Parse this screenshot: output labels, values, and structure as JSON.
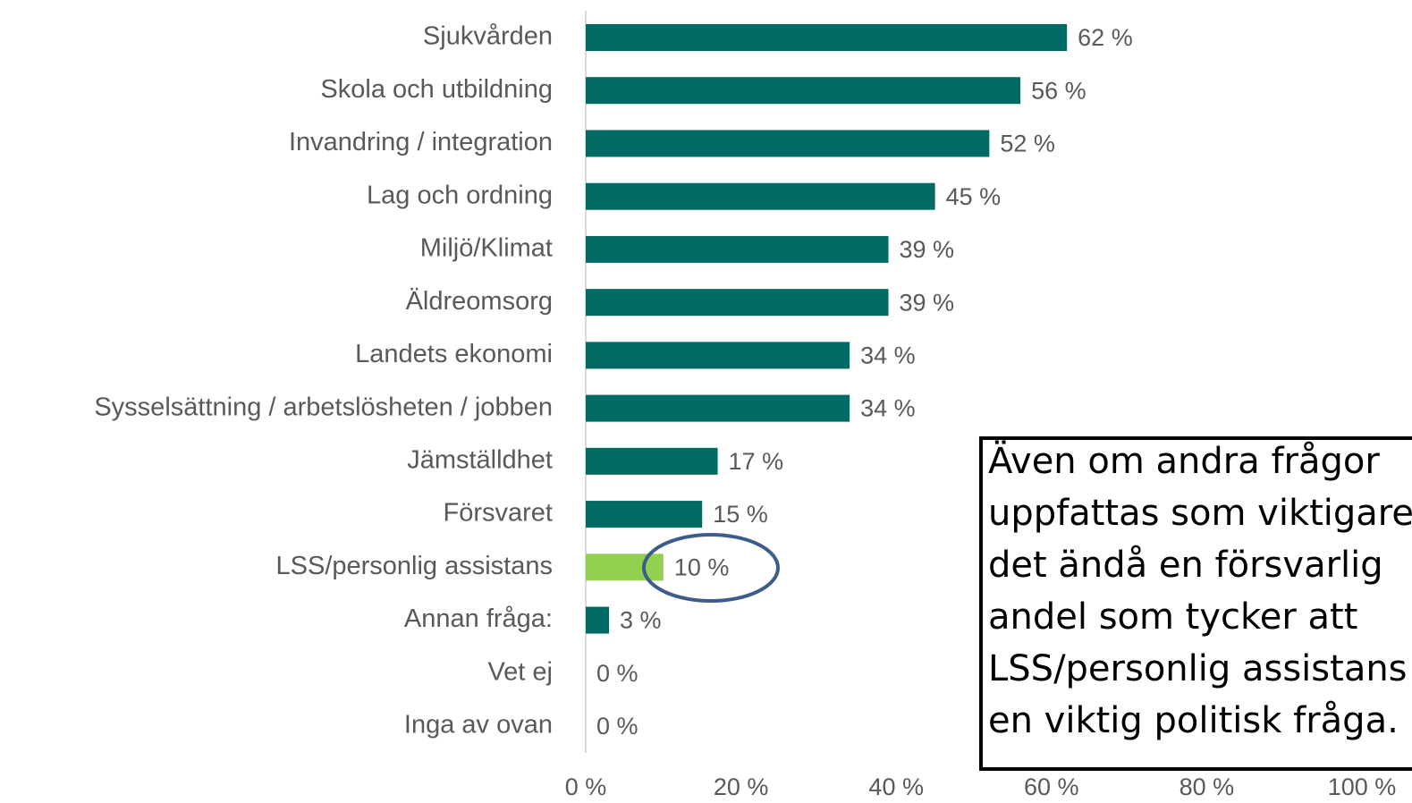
{
  "chart_data": {
    "type": "bar",
    "orientation": "horizontal",
    "categories": [
      "Sjukvården",
      "Skola och utbildning",
      "Invandring / integration",
      "Lag och ordning",
      "Miljö/Klimat",
      "Äldreomsorg",
      "Landets ekonomi",
      "Sysselsättning / arbetslösheten / jobben",
      "Jämställdhet",
      "Försvaret",
      "LSS/personlig assistans",
      "Annan fråga:",
      "Vet ej",
      "Inga av ovan"
    ],
    "values": [
      62,
      56,
      52,
      45,
      39,
      39,
      34,
      34,
      17,
      15,
      10,
      3,
      0,
      0
    ],
    "value_labels": [
      "62 %",
      "56 %",
      "52 %",
      "45 %",
      "39 %",
      "39 %",
      "34 %",
      "34 %",
      "17 %",
      "15 %",
      "10 %",
      "3 %",
      "0 %",
      "0 %"
    ],
    "colors": [
      "#006a64",
      "#006a64",
      "#006a64",
      "#006a64",
      "#006a64",
      "#006a64",
      "#006a64",
      "#006a64",
      "#006a64",
      "#006a64",
      "#92d050",
      "#006a64",
      "#006a64",
      "#006a64"
    ],
    "xlim": [
      0,
      100
    ],
    "xticks": [
      {
        "value": 0,
        "label": "0 %"
      },
      {
        "value": 20,
        "label": "20 %"
      },
      {
        "value": 40,
        "label": "40 %"
      },
      {
        "value": 60,
        "label": "60 %"
      },
      {
        "value": 80,
        "label": "80 %"
      },
      {
        "value": 100,
        "label": "100 %"
      }
    ],
    "annotation": [
      "Även om andra frågor",
      "uppfattas som viktigare",
      "det ändå en försvarlig",
      "andel som tycker att",
      "LSS/personlig assistans",
      "en viktig politisk fråga."
    ]
  }
}
